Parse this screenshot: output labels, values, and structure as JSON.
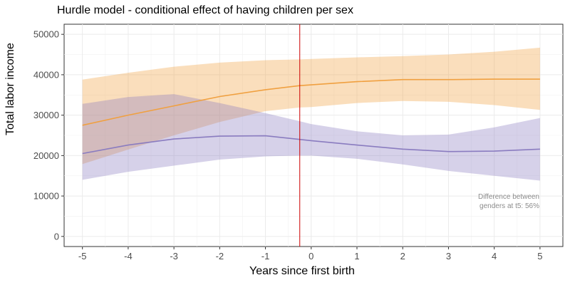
{
  "chart_data": {
    "type": "line",
    "title": "Hurdle model - conditional effect of having children per sex",
    "xlabel": "Years since first birth",
    "ylabel": "Total labor income",
    "xlim": [
      -5.4,
      5.5
    ],
    "ylim": [
      -2500,
      52500
    ],
    "xticks": [
      -5,
      -4,
      -3,
      -2,
      -1,
      0,
      1,
      2,
      3,
      4,
      5
    ],
    "yticks": [
      0,
      10000,
      20000,
      30000,
      40000,
      50000
    ],
    "vline": {
      "x": -0.25,
      "color": "#cc0000"
    },
    "annotation": [
      "Difference between",
      "genders at t5: 56%"
    ],
    "grid": true,
    "legend": "none",
    "series": [
      {
        "color": "#f0a040",
        "x": [
          -5,
          -4,
          -3,
          -2,
          -1,
          -0.25,
          0,
          1,
          2,
          3,
          4,
          5
        ],
        "y": [
          27500,
          30000,
          32300,
          34600,
          36300,
          37300,
          37500,
          38300,
          38800,
          38800,
          38900,
          38900
        ],
        "lower": [
          17900,
          21500,
          25000,
          28300,
          31000,
          31900,
          32000,
          33000,
          33500,
          33300,
          32500,
          31300
        ],
        "upper": [
          38800,
          40500,
          42000,
          43000,
          43600,
          43800,
          43900,
          44300,
          44600,
          45000,
          45700,
          46700
        ]
      },
      {
        "color": "#8a7cc0",
        "x": [
          -5,
          -4,
          -3,
          -2,
          -1,
          -0.25,
          0,
          1,
          2,
          3,
          4,
          5
        ],
        "y": [
          20500,
          22600,
          24100,
          24800,
          24900,
          24000,
          23700,
          22600,
          21600,
          21000,
          21100,
          21600
        ],
        "lower": [
          14000,
          16000,
          17500,
          19000,
          19800,
          20000,
          20000,
          19200,
          17800,
          16200,
          15000,
          13800
        ],
        "upper": [
          32800,
          34500,
          35200,
          33000,
          30500,
          28500,
          27800,
          26000,
          25000,
          25200,
          27000,
          29300
        ]
      }
    ]
  }
}
